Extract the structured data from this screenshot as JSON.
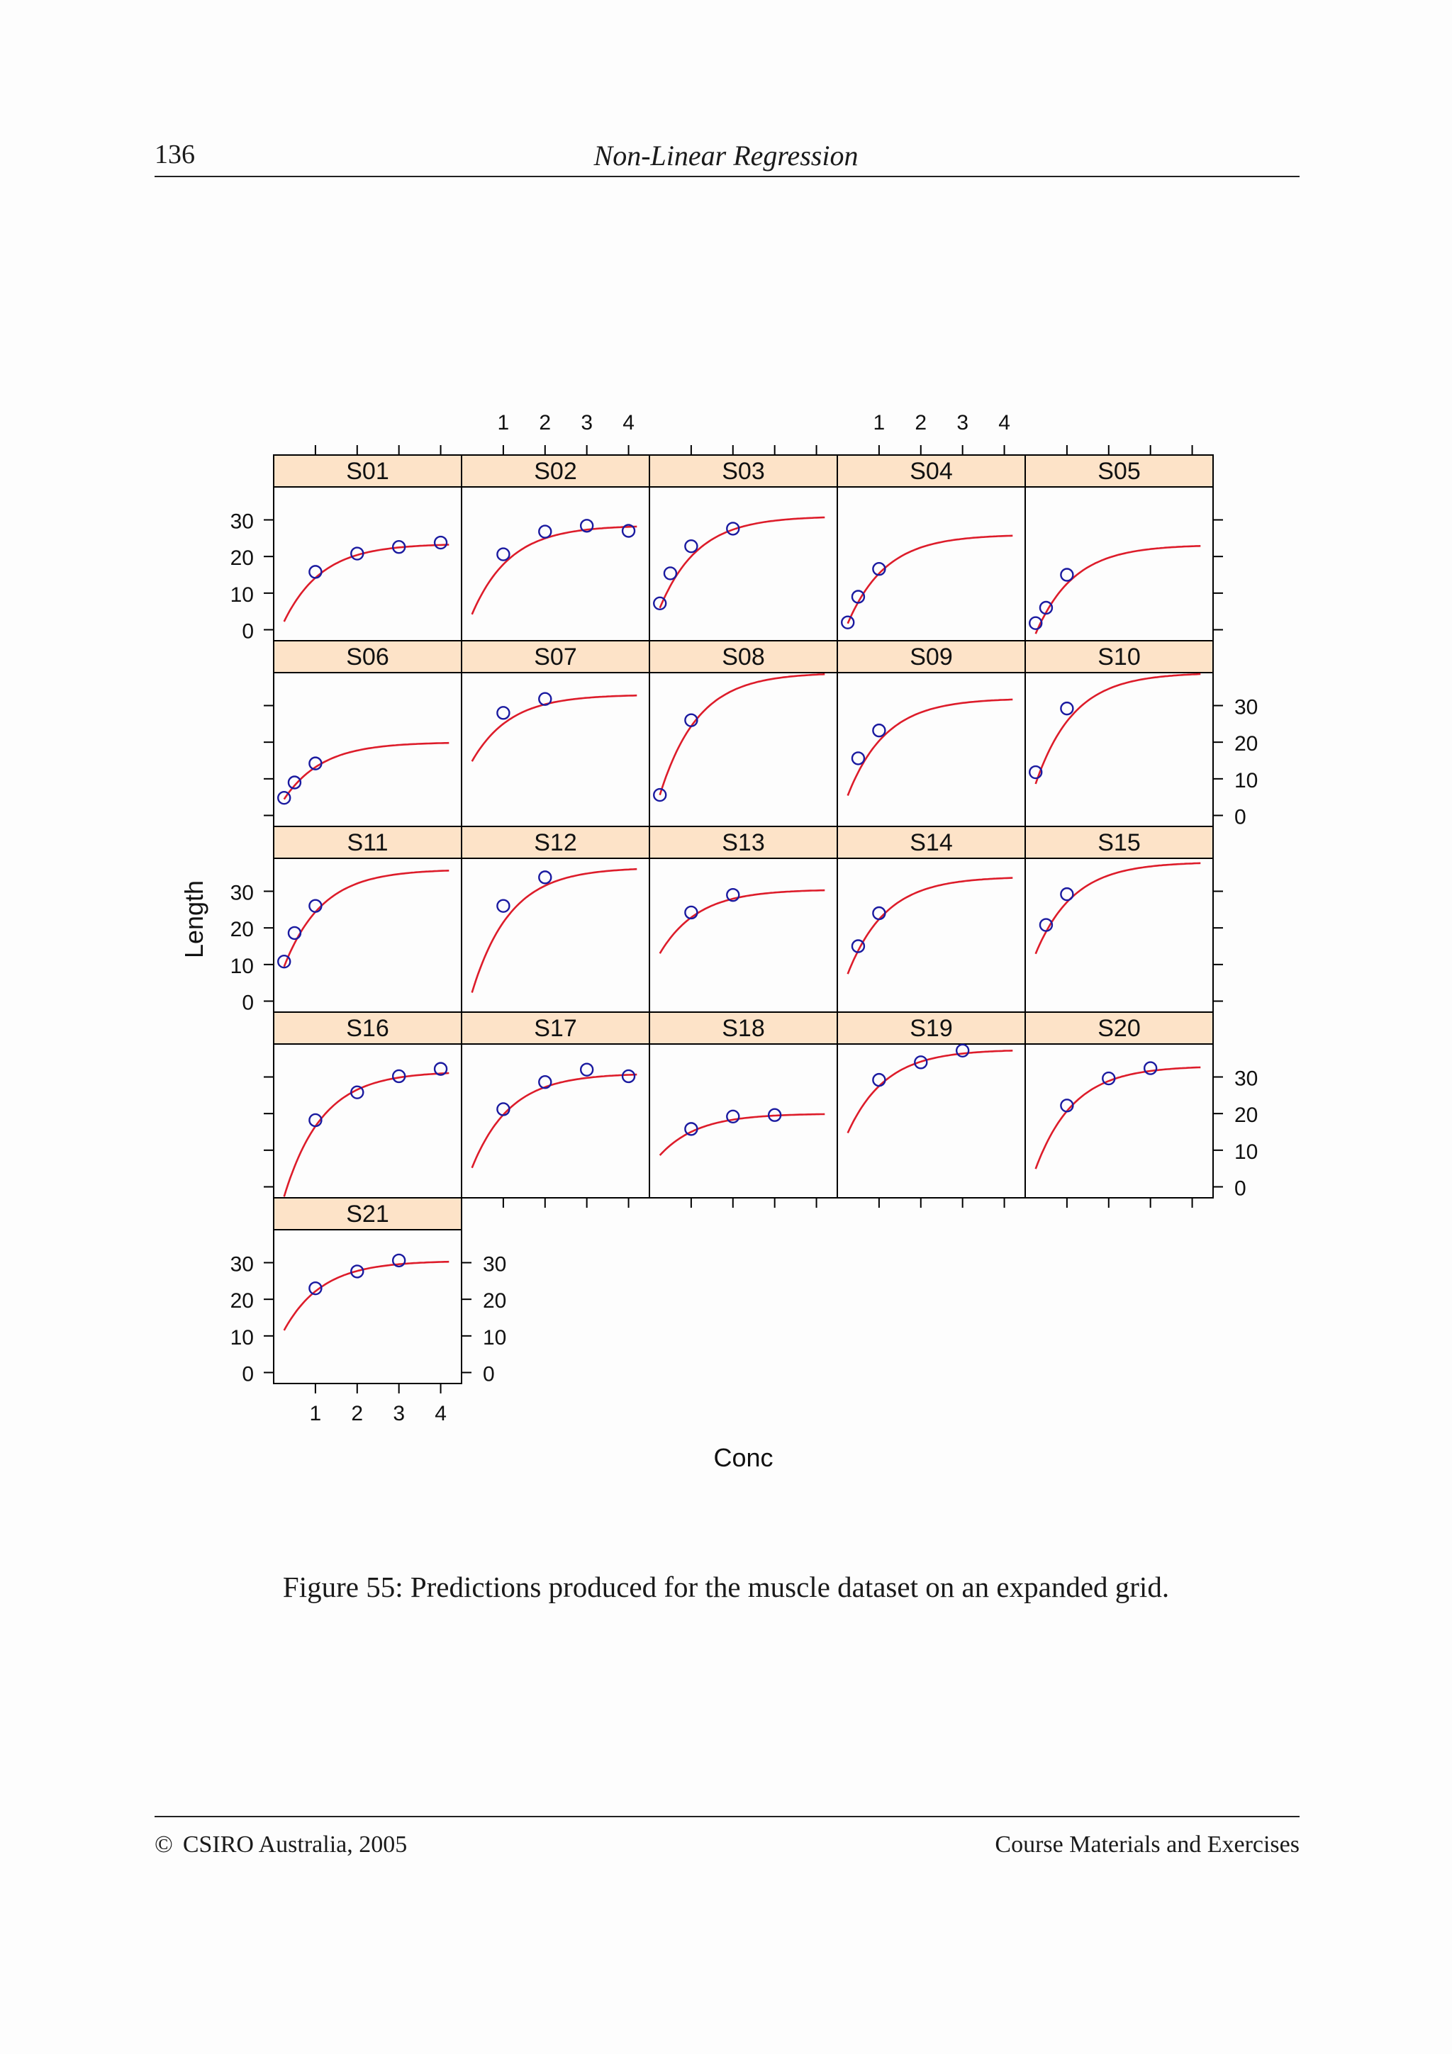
{
  "header": {
    "page_number": "136",
    "running_title": "Non-Linear Regression"
  },
  "figure": {
    "caption": "Figure 55: Predictions produced for the muscle dataset on an expanded grid."
  },
  "footer": {
    "copyright_symbol": "©",
    "copyright_text": "CSIRO Australia, 2005",
    "right_text": "Course Materials and Exercises"
  },
  "colors": {
    "strip_fill": "#fde3c8",
    "curve": "#dd1c2a",
    "points": "#1a1aa0",
    "panel_border": "#000000"
  },
  "chart_data": {
    "type": "scatter",
    "layout": "lattice 5 columns x 5 rows",
    "xlabel": "Conc",
    "ylabel": "Length",
    "xlim": [
      0,
      4.5
    ],
    "ylim": [
      -3,
      39
    ],
    "x_ticks": [
      1,
      2,
      3,
      4
    ],
    "y_ticks": [
      0,
      10,
      20,
      30
    ],
    "curve_x_range": [
      0.25,
      4.2
    ],
    "panels": [
      {
        "label": "S01",
        "points": [
          [
            1,
            15.8
          ],
          [
            2,
            20.8
          ],
          [
            3,
            22.6
          ],
          [
            4,
            23.8
          ]
        ],
        "curve": {
          "asym": 23.5,
          "amp": 28.0,
          "rate": 1.1
        }
      },
      {
        "label": "S02",
        "points": [
          [
            1,
            20.6
          ],
          [
            2,
            26.8
          ],
          [
            3,
            28.4
          ],
          [
            4,
            27.0
          ]
        ],
        "curve": {
          "asym": 28.5,
          "amp": 32.0,
          "rate": 1.1
        }
      },
      {
        "label": "S03",
        "points": [
          [
            0.25,
            7.2
          ],
          [
            0.5,
            15.4
          ],
          [
            1,
            22.8
          ],
          [
            2,
            27.6
          ]
        ],
        "curve": {
          "asym": 31.0,
          "amp": 33.0,
          "rate": 1.1
        }
      },
      {
        "label": "S04",
        "points": [
          [
            0.25,
            2.0
          ],
          [
            0.5,
            9.0
          ],
          [
            1,
            16.6
          ]
        ],
        "curve": {
          "asym": 26.0,
          "amp": 32.0,
          "rate": 1.1
        }
      },
      {
        "label": "S05",
        "points": [
          [
            0.25,
            1.8
          ],
          [
            0.5,
            6.0
          ],
          [
            1,
            15.0
          ]
        ],
        "curve": {
          "asym": 23.2,
          "amp": 32.0,
          "rate": 1.1
        }
      },
      {
        "label": "S06",
        "points": [
          [
            0.25,
            4.8
          ],
          [
            0.5,
            9.0
          ],
          [
            1,
            14.2
          ]
        ],
        "curve": {
          "asym": 20.0,
          "amp": 20.5,
          "rate": 1.1
        }
      },
      {
        "label": "S07",
        "points": [
          [
            1,
            28.0
          ],
          [
            2,
            31.8
          ]
        ],
        "curve": {
          "asym": 33.0,
          "amp": 24.0,
          "rate": 1.1
        }
      },
      {
        "label": "S08",
        "points": [
          [
            0.25,
            5.6
          ],
          [
            1,
            26.0
          ]
        ],
        "curve": {
          "asym": 39.0,
          "amp": 44.0,
          "rate": 1.1
        }
      },
      {
        "label": "S09",
        "points": [
          [
            0.5,
            15.6
          ],
          [
            1,
            23.2
          ]
        ],
        "curve": {
          "asym": 32.0,
          "amp": 35.0,
          "rate": 1.1
        }
      },
      {
        "label": "S10",
        "points": [
          [
            0.25,
            11.8
          ],
          [
            1,
            29.2
          ]
        ],
        "curve": {
          "asym": 39.0,
          "amp": 40.0,
          "rate": 1.1
        }
      },
      {
        "label": "S11",
        "points": [
          [
            0.25,
            10.8
          ],
          [
            0.5,
            18.6
          ],
          [
            1,
            26.0
          ]
        ],
        "curve": {
          "asym": 36.0,
          "amp": 35.0,
          "rate": 1.1
        }
      },
      {
        "label": "S12",
        "points": [
          [
            1,
            26.0
          ],
          [
            2,
            33.8
          ]
        ],
        "curve": {
          "asym": 36.5,
          "amp": 45.0,
          "rate": 1.1
        }
      },
      {
        "label": "S13",
        "points": [
          [
            1,
            24.2
          ],
          [
            2,
            29.0
          ]
        ],
        "curve": {
          "asym": 30.5,
          "amp": 23.0,
          "rate": 1.1
        }
      },
      {
        "label": "S14",
        "points": [
          [
            0.5,
            15.0
          ],
          [
            1,
            24.0
          ]
        ],
        "curve": {
          "asym": 34.0,
          "amp": 35.0,
          "rate": 1.1
        }
      },
      {
        "label": "S15",
        "points": [
          [
            0.5,
            20.8
          ],
          [
            1,
            29.2
          ]
        ],
        "curve": {
          "asym": 38.0,
          "amp": 33.0,
          "rate": 1.1
        }
      },
      {
        "label": "S16",
        "points": [
          [
            1,
            18.2
          ],
          [
            2,
            25.8
          ],
          [
            3,
            30.2
          ],
          [
            4,
            32.2
          ]
        ],
        "curve": {
          "asym": 31.5,
          "amp": 45.0,
          "rate": 1.1
        }
      },
      {
        "label": "S17",
        "points": [
          [
            1,
            21.2
          ],
          [
            2,
            28.6
          ],
          [
            3,
            32.0
          ],
          [
            4,
            30.2
          ]
        ],
        "curve": {
          "asym": 31.0,
          "amp": 34.0,
          "rate": 1.1
        }
      },
      {
        "label": "S18",
        "points": [
          [
            1,
            15.8
          ],
          [
            2,
            19.2
          ],
          [
            3,
            19.6
          ]
        ],
        "curve": {
          "asym": 20.0,
          "amp": 15.0,
          "rate": 1.1
        }
      },
      {
        "label": "S19",
        "points": [
          [
            1,
            29.2
          ],
          [
            2,
            34.0
          ],
          [
            3,
            37.2
          ]
        ],
        "curve": {
          "asym": 37.5,
          "amp": 30.0,
          "rate": 1.1
        }
      },
      {
        "label": "S20",
        "points": [
          [
            1,
            22.2
          ],
          [
            2,
            29.6
          ],
          [
            3,
            32.4
          ]
        ],
        "curve": {
          "asym": 33.0,
          "amp": 37.0,
          "rate": 1.1
        }
      },
      {
        "label": "S21",
        "points": [
          [
            1,
            23.0
          ],
          [
            2,
            27.6
          ],
          [
            3,
            30.6
          ]
        ],
        "curve": {
          "asym": 30.5,
          "amp": 25.0,
          "rate": 1.1
        }
      }
    ]
  }
}
